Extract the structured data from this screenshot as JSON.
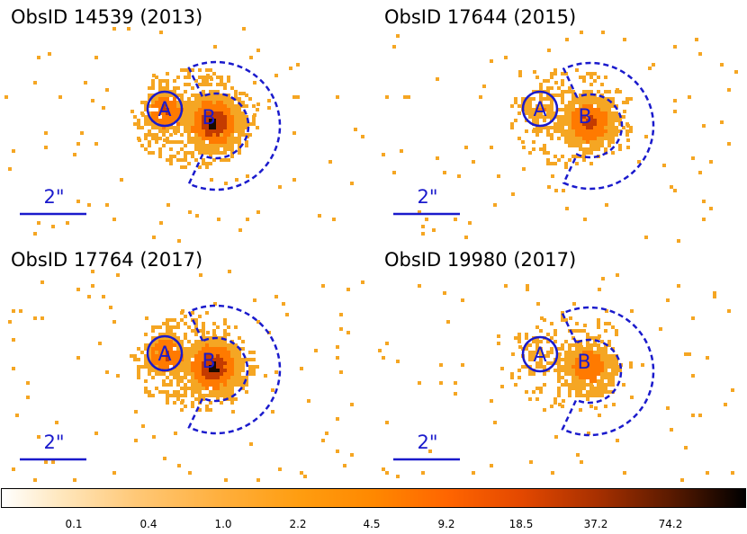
{
  "panels": [
    {
      "title": "ObsID 14539 (2013)",
      "label_a": "A",
      "label_b": "B",
      "scale_label": "2\"",
      "variant": "bright"
    },
    {
      "title": "ObsID 17644 (2015)",
      "label_a": "A",
      "label_b": "B",
      "scale_label": "2\"",
      "variant": "mid"
    },
    {
      "title": "ObsID 17764 (2017)",
      "label_a": "A",
      "label_b": "B",
      "scale_label": "2\"",
      "variant": "bright"
    },
    {
      "title": "ObsID 19980 (2017)",
      "label_a": "A",
      "label_b": "B",
      "scale_label": "2\"",
      "variant": "faint"
    }
  ],
  "colorbar": {
    "ticks": [
      "0.1",
      "0.4",
      "1.0",
      "2.2",
      "4.5",
      "9.2",
      "18.5",
      "37.2",
      "74.2"
    ]
  },
  "colors": {
    "region": "#1a1acc",
    "pixel_low": "#f5a623",
    "pixel_mid": "#ff7a00",
    "pixel_high": "#c43b00",
    "pixel_peak": "#1a0a00"
  }
}
